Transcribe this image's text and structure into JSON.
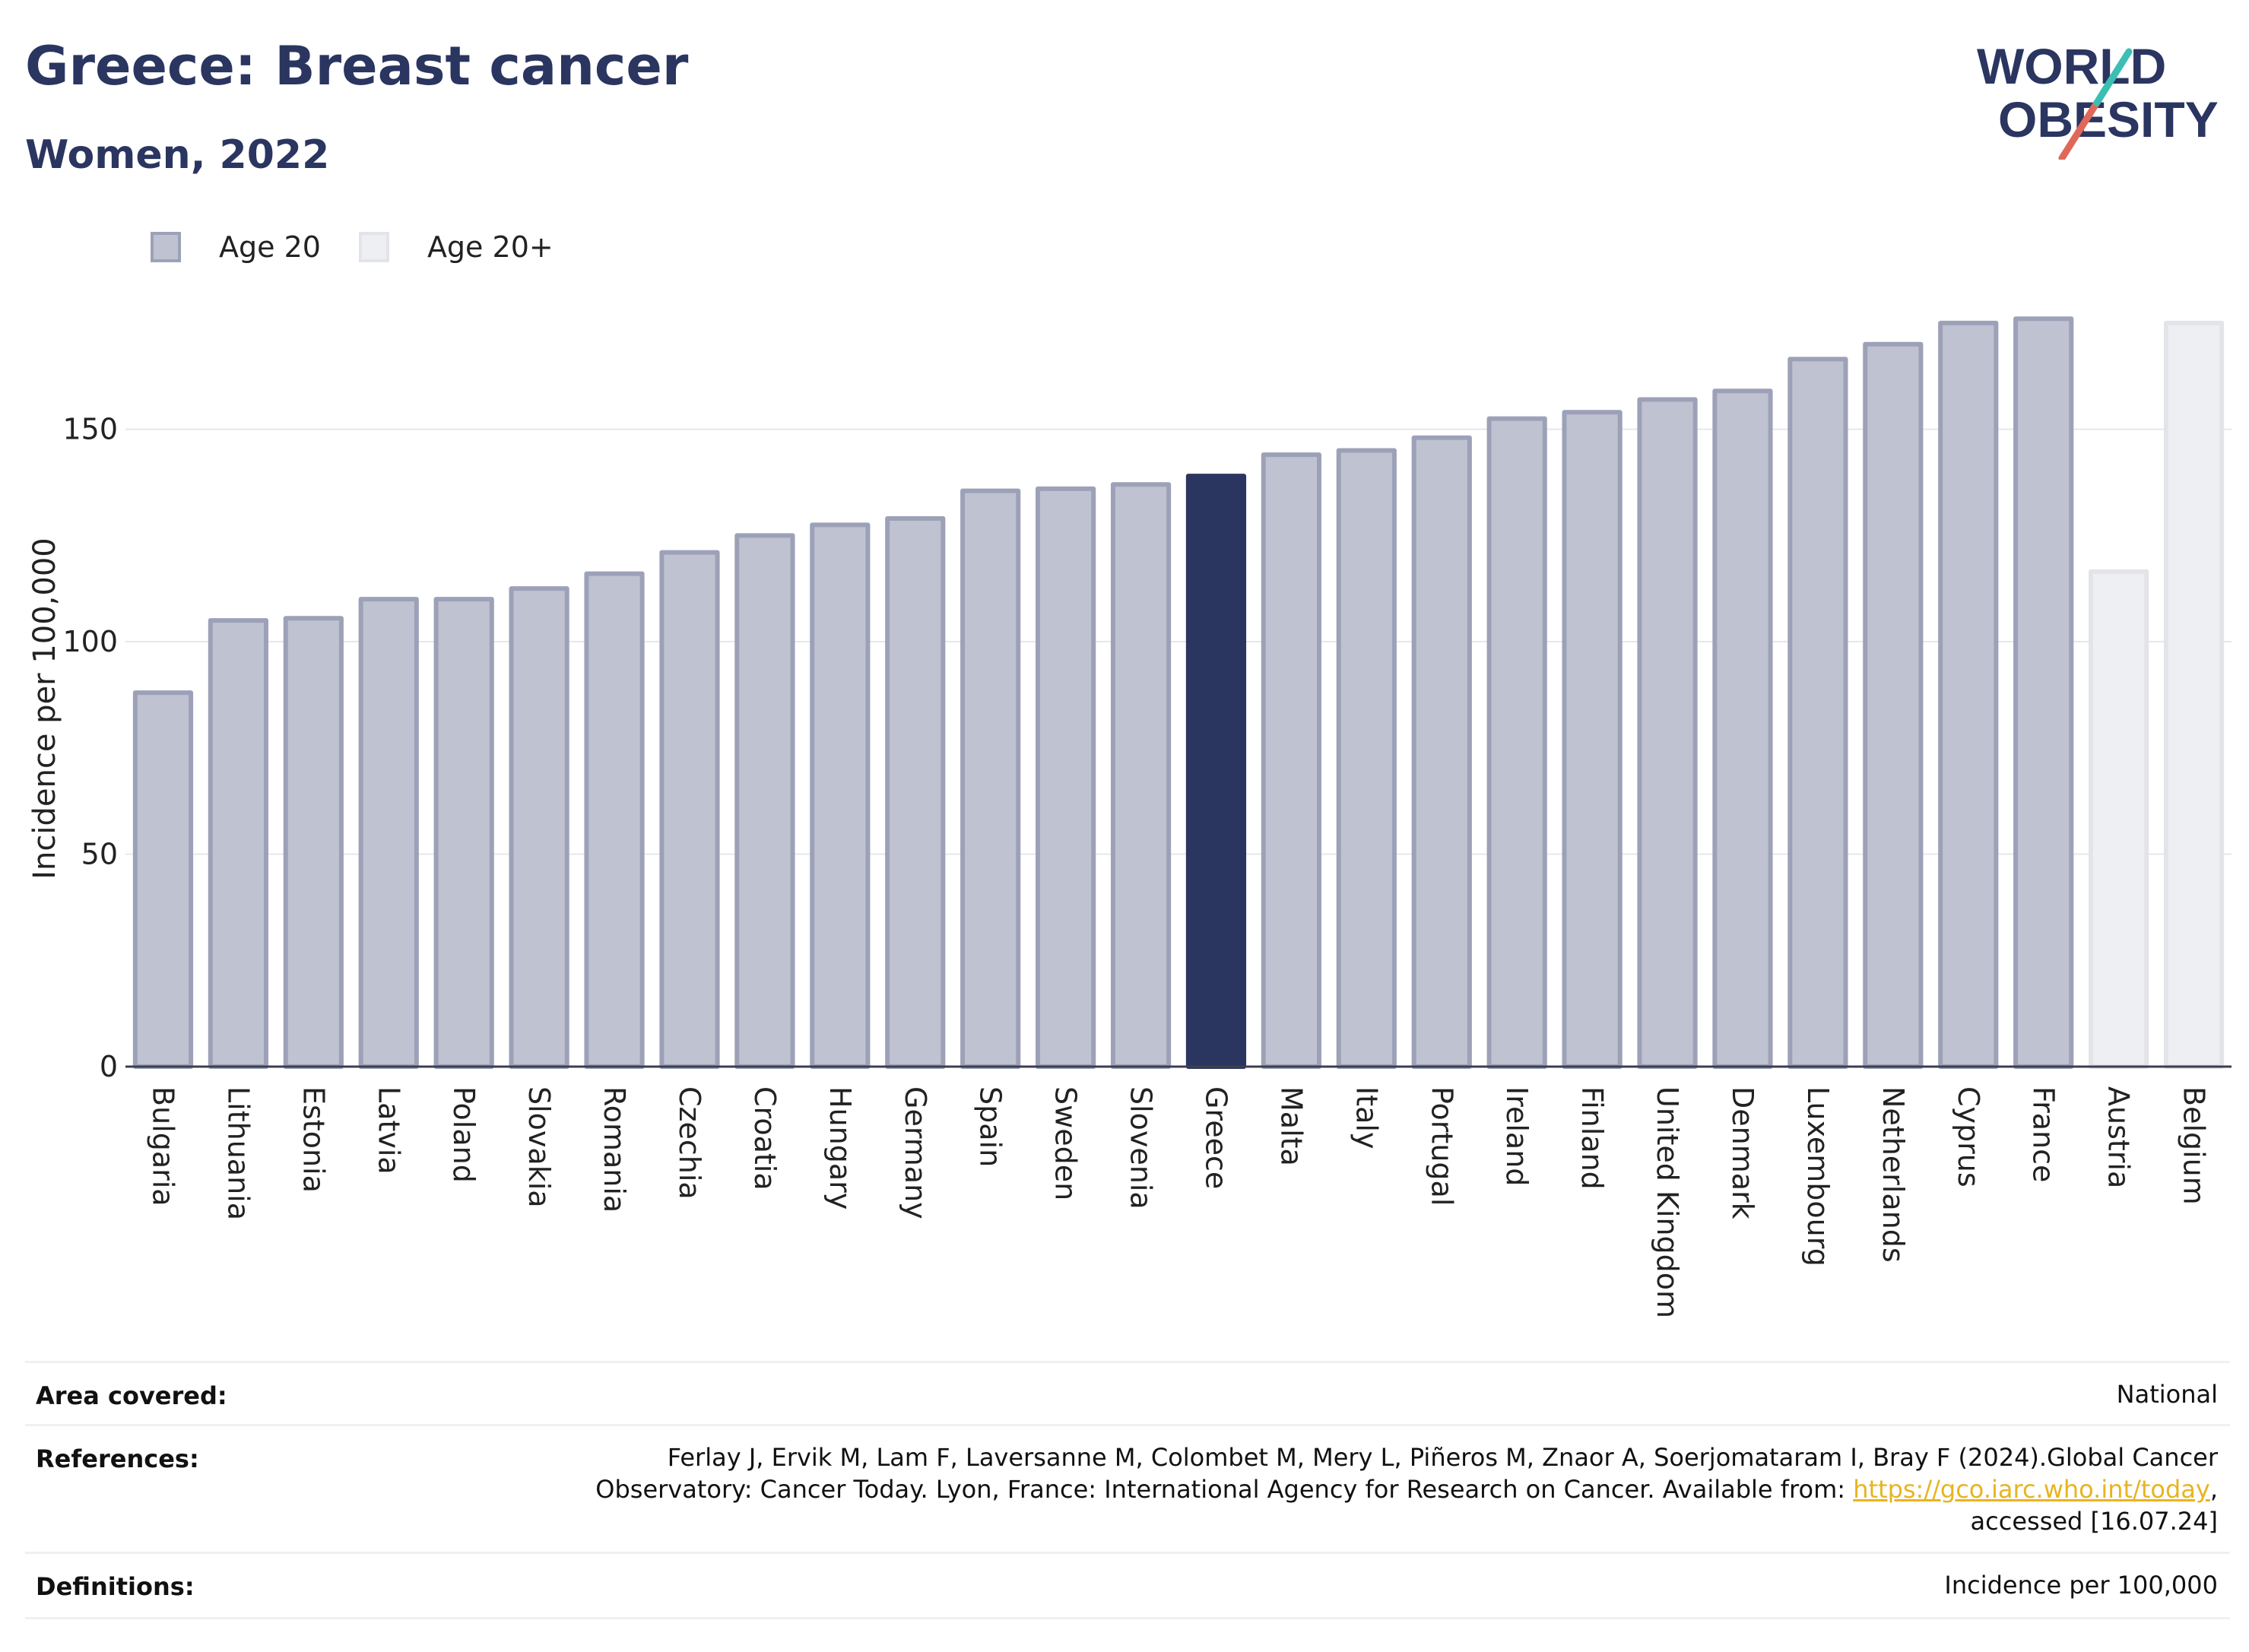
{
  "header": {
    "title": "Greece: Breast cancer",
    "subtitle": "Women, 2022"
  },
  "logo": {
    "line1": "WORLD",
    "line2": "OBESITY"
  },
  "legend": [
    {
      "label": "Age 20",
      "color": "#bfc2d0",
      "border": "#9da1b8"
    },
    {
      "label": "Age 20+",
      "color": "#eeeff2",
      "border": "#e3e4e9"
    }
  ],
  "chart_data": {
    "type": "bar",
    "ylabel": "Incidence per 100,000",
    "xlabel": "",
    "ylim": [
      0,
      190
    ],
    "yticks": [
      0,
      50,
      100,
      150
    ],
    "grid": true,
    "legend_position": "top-left",
    "highlight": "Greece",
    "highlight_color": "#2a3560",
    "categories": [
      "Bulgaria",
      "Lithuania",
      "Estonia",
      "Latvia",
      "Poland",
      "Slovakia",
      "Romania",
      "Czechia",
      "Croatia",
      "Hungary",
      "Germany",
      "Spain",
      "Sweden",
      "Slovenia",
      "Greece",
      "Malta",
      "Italy",
      "Portugal",
      "Ireland",
      "Finland",
      "United Kingdom",
      "Denmark",
      "Luxembourg",
      "Netherlands",
      "Cyprus",
      "France",
      "Austria",
      "Belgium"
    ],
    "series": [
      {
        "name": "Age 20",
        "values": [
          88,
          105,
          105.5,
          110,
          110,
          112.5,
          116,
          121,
          125,
          127.5,
          129,
          135.5,
          136,
          137,
          139,
          144,
          145,
          148,
          152.5,
          154,
          157,
          159,
          166.5,
          170,
          175,
          176,
          null,
          null
        ]
      },
      {
        "name": "Age 20+",
        "values": [
          null,
          null,
          null,
          null,
          null,
          null,
          null,
          null,
          null,
          null,
          null,
          null,
          null,
          null,
          null,
          null,
          null,
          null,
          null,
          null,
          null,
          null,
          null,
          null,
          null,
          null,
          116.5,
          175
        ]
      }
    ]
  },
  "info": {
    "area_label": "Area covered:",
    "area_value": "National",
    "references_label": "References:",
    "references_line1": "Ferlay J, Ervik M, Lam F, Laversanne M, Colombet M, Mery L, Piñeros M, Znaor A, Soerjomataram I, Bray F (2024).Global Cancer",
    "references_line2": "Observatory: Cancer Today. Lyon, France: International Agency for Research on Cancer. Available from: ",
    "references_link": "https://gco.iarc.who.int/today",
    "references_line2_end": ",",
    "references_line3": "accessed [16.07.24]",
    "definitions_label": "Definitions:",
    "definitions_value": "Incidence per 100,000"
  }
}
